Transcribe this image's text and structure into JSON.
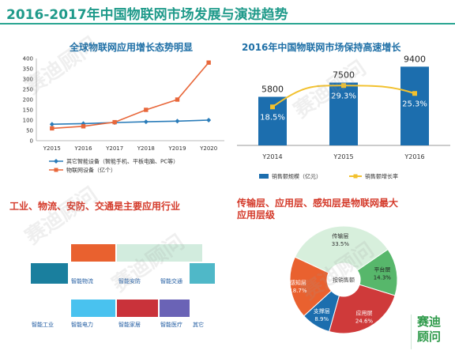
{
  "page_title": "2016-2017年中国物联网市场发展与演进趋势",
  "left_chart_title": "全球物联网应用增长态势明显",
  "right_chart_title": "2016年中国物联网市场保持高速增长",
  "apps_title": "工业、物流、安防、交通是主要应用行业",
  "layer_title_line1": "传输层、应用层、感知层是物联网最大",
  "layer_title_line2": "应用层级",
  "watermark": "赛迪顾问",
  "logo": [
    "赛迪",
    "顾问"
  ],
  "colors": {
    "line_other": "#2a7cb9",
    "line_iot": "#e8673a",
    "bar": "#1c6eae",
    "growth": "#f2c12e",
    "app_teal": "#1a7f9e",
    "app_orange": "#e9612f",
    "app_mint": "#d2ecde",
    "app_cyan": "#4fb8c8",
    "app_sky": "#49c2ef",
    "app_red": "#c9323a",
    "app_purple": "#6a63b6",
    "pie_light": "#d7efdc",
    "pie_green": "#57b76b",
    "pie_red": "#cf3a3a",
    "pie_blue": "#1c6eae",
    "pie_orange": "#e9612f"
  },
  "chart_data": [
    {
      "type": "line",
      "title": "全球物联网应用增长态势明显",
      "categories": [
        "Y2015",
        "Y2016",
        "Y2017",
        "Y2018",
        "Y2019",
        "Y2020"
      ],
      "ylim": [
        0,
        400
      ],
      "yticks": [
        "0",
        "50",
        "100",
        "150",
        "200",
        "250",
        "300",
        "350",
        "400"
      ],
      "grid": false,
      "legend_position": "bottom",
      "series": [
        {
          "name": "其它智能设备（智能手机、平板电脑、PC等）",
          "values": [
            80,
            83,
            88,
            92,
            95,
            100
          ]
        },
        {
          "name": "物联网设备（亿个）",
          "values": [
            60,
            70,
            90,
            150,
            200,
            380
          ]
        }
      ]
    },
    {
      "type": "bar",
      "title": "2016年中国物联网市场保持高速增长",
      "categories": [
        "Y2014",
        "Y2015",
        "Y2016"
      ],
      "legend_position": "bottom",
      "series": [
        {
          "name": "销售额规模（亿元）",
          "values": [
            5800,
            7500,
            9400
          ],
          "labels": [
            "5800",
            "7500",
            "9400"
          ]
        },
        {
          "name": "销售额增长率",
          "values": [
            18.5,
            29.3,
            25.3
          ],
          "labels": [
            "18.5%",
            "29.3%",
            "25.3%"
          ]
        }
      ]
    },
    {
      "type": "pie",
      "title": "传输层、应用层、感知层是物联网最大应用层级",
      "center_label": "按销售额",
      "slices": [
        {
          "name": "传输层",
          "value": 33.5,
          "label": "33.5%"
        },
        {
          "name": "平台层",
          "value": 14.3,
          "label": "14.3%"
        },
        {
          "name": "应用层",
          "value": 24.6,
          "label": "24.6%"
        },
        {
          "name": "支撑层",
          "value": 8.9,
          "label": "8.9%"
        },
        {
          "name": "感知层",
          "value": 18.7,
          "label": "18.7%"
        }
      ]
    }
  ],
  "apps": {
    "row1_labels": [
      "智能物流",
      "智能安防",
      "智能交通"
    ],
    "row2_labels": [
      "智能工业",
      "智能电力",
      "智能家居",
      "智能医疗",
      "其它"
    ]
  }
}
